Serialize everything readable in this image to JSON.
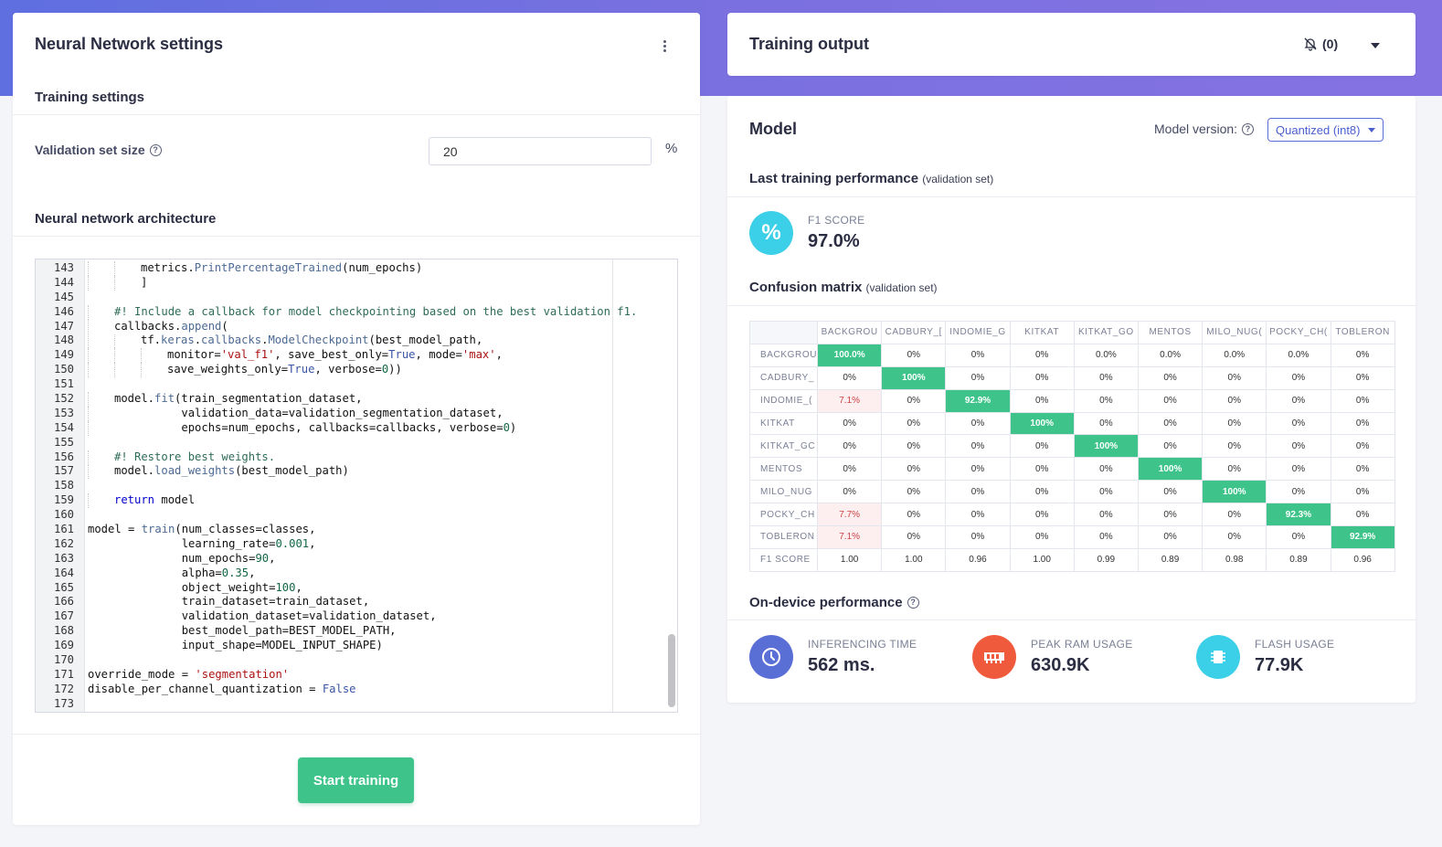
{
  "left": {
    "title": "Neural Network settings",
    "training_settings": "Training settings",
    "validation_label": "Validation set size",
    "validation_value": "20",
    "validation_unit": "%",
    "architecture_title": "Neural network architecture",
    "start_button": "Start training"
  },
  "code": {
    "lines": [
      {
        "n": "143",
        "indent": 2,
        "html": "<span>metrics.</span><span class=\"fn\">PrintPercentageTrained</span><span>(num_epochs)</span>"
      },
      {
        "n": "144",
        "indent": 2,
        "html": "<span>]</span>"
      },
      {
        "n": "145",
        "indent": 0,
        "html": ""
      },
      {
        "n": "146",
        "indent": 1,
        "html": "<span class=\"cmt\">#! Include a callback for model checkpointing based on the best validation f1.</span>"
      },
      {
        "n": "147",
        "indent": 1,
        "html": "<span>callbacks.</span><span class=\"fn\">append</span><span>(</span>"
      },
      {
        "n": "148",
        "indent": 2,
        "html": "<span>tf.</span><span class=\"fn\">keras</span><span>.</span><span class=\"fn\">callbacks</span><span>.</span><span class=\"fn\">ModelCheckpoint</span><span>(best_model_path,</span>"
      },
      {
        "n": "149",
        "indent": 3,
        "html": "<span>monitor=</span><span class=\"str\">'val_f1'</span><span>, save_best_only=</span><span class=\"bool\">True</span><span>, mode=</span><span class=\"str\">'max'</span><span>,</span>"
      },
      {
        "n": "150",
        "indent": 3,
        "html": "<span>save_weights_only=</span><span class=\"bool\">True</span><span>, verbose=</span><span class=\"num\">0</span><span>))</span>"
      },
      {
        "n": "151",
        "indent": 0,
        "html": ""
      },
      {
        "n": "152",
        "indent": 1,
        "html": "<span>model.</span><span class=\"fn\">fit</span><span>(train_segmentation_dataset,</span>"
      },
      {
        "n": "153",
        "indent": 1,
        "html": "<span>          validation_data=validation_segmentation_dataset,</span>"
      },
      {
        "n": "154",
        "indent": 1,
        "html": "<span>          epochs=num_epochs, callbacks=callbacks, verbose=</span><span class=\"num\">0</span><span>)</span>"
      },
      {
        "n": "155",
        "indent": 0,
        "html": ""
      },
      {
        "n": "156",
        "indent": 1,
        "html": "<span class=\"cmt\">#! Restore best weights.</span>"
      },
      {
        "n": "157",
        "indent": 1,
        "html": "<span>model.</span><span class=\"fn\">load_weights</span><span>(best_model_path)</span>"
      },
      {
        "n": "158",
        "indent": 0,
        "html": ""
      },
      {
        "n": "159",
        "indent": 1,
        "html": "<span class=\"kw\">return</span><span> model</span>"
      },
      {
        "n": "160",
        "indent": 0,
        "html": ""
      },
      {
        "n": "161",
        "indent": 0,
        "html": "<span>model = </span><span class=\"fn\">train</span><span>(num_classes=classes,</span>"
      },
      {
        "n": "162",
        "indent": 0,
        "html": "<span>              learning_rate=</span><span class=\"num\">0.001</span><span>,</span>"
      },
      {
        "n": "163",
        "indent": 0,
        "html": "<span>              num_epochs=</span><span class=\"num\">90</span><span>,</span>"
      },
      {
        "n": "164",
        "indent": 0,
        "html": "<span>              alpha=</span><span class=\"num\">0.35</span><span>,</span>"
      },
      {
        "n": "165",
        "indent": 0,
        "html": "<span>              object_weight=</span><span class=\"num\">100</span><span>,</span>"
      },
      {
        "n": "166",
        "indent": 0,
        "html": "<span>              train_dataset=train_dataset,</span>"
      },
      {
        "n": "167",
        "indent": 0,
        "html": "<span>              validation_dataset=validation_dataset,</span>"
      },
      {
        "n": "168",
        "indent": 0,
        "html": "<span>              best_model_path=BEST_MODEL_PATH,</span>"
      },
      {
        "n": "169",
        "indent": 0,
        "html": "<span>              input_shape=MODEL_INPUT_SHAPE)</span>"
      },
      {
        "n": "170",
        "indent": 0,
        "html": ""
      },
      {
        "n": "171",
        "indent": 0,
        "html": "<span>override_mode = </span><span class=\"str\">'segmentation'</span>"
      },
      {
        "n": "172",
        "indent": 0,
        "html": "<span>disable_per_channel_quantization = </span><span class=\"bool\">False</span>"
      },
      {
        "n": "173",
        "indent": 0,
        "html": ""
      }
    ]
  },
  "output": {
    "title": "Training output",
    "notifications": "(0)"
  },
  "model": {
    "title": "Model",
    "version_label": "Model version:",
    "version_value": "Quantized (int8)",
    "last_perf_title": "Last training performance",
    "last_perf_suffix": "(validation set)",
    "f1_label": "F1 SCORE",
    "f1_value": "97.0%",
    "cm_title": "Confusion matrix",
    "cm_suffix": "(validation set)",
    "ondevice_title": "On-device performance",
    "inference_label": "INFERENCING TIME",
    "inference_value": "562 ms.",
    "ram_label": "PEAK RAM USAGE",
    "ram_value": "630.9K",
    "flash_label": "FLASH USAGE",
    "flash_value": "77.9K"
  },
  "confusion_matrix": {
    "columns": [
      "BACKGROUND",
      "CADBURY_DAIRY",
      "INDOMIE_GORENG",
      "KITKAT",
      "KITKAT_GOLD",
      "MENTOS",
      "MILO_NUGGETS",
      "POCKY_CHOCO",
      "TOBLERONE"
    ],
    "column_display": [
      "BACKGROU",
      "CADBURY_[",
      "INDOMIE_G",
      "KITKAT",
      "KITKAT_GO",
      "MENTOS",
      "MILO_NUG(",
      "POCKY_CH(",
      "TOBLERON"
    ],
    "row_display": [
      "BACKGROU",
      "CADBURY_",
      "INDOMIE_(",
      "KITKAT",
      "KITKAT_GC",
      "MENTOS",
      "MILO_NUG",
      "POCKY_CH",
      "TOBLERON"
    ],
    "rows": [
      [
        "100.0%",
        "0%",
        "0%",
        "0%",
        "0.0%",
        "0.0%",
        "0.0%",
        "0.0%",
        "0%"
      ],
      [
        "0%",
        "100%",
        "0%",
        "0%",
        "0%",
        "0%",
        "0%",
        "0%",
        "0%"
      ],
      [
        "7.1%",
        "0%",
        "92.9%",
        "0%",
        "0%",
        "0%",
        "0%",
        "0%",
        "0%"
      ],
      [
        "0%",
        "0%",
        "0%",
        "100%",
        "0%",
        "0%",
        "0%",
        "0%",
        "0%"
      ],
      [
        "0%",
        "0%",
        "0%",
        "0%",
        "100%",
        "0%",
        "0%",
        "0%",
        "0%"
      ],
      [
        "0%",
        "0%",
        "0%",
        "0%",
        "0%",
        "100%",
        "0%",
        "0%",
        "0%"
      ],
      [
        "0%",
        "0%",
        "0%",
        "0%",
        "0%",
        "0%",
        "100%",
        "0%",
        "0%"
      ],
      [
        "7.7%",
        "0%",
        "0%",
        "0%",
        "0%",
        "0%",
        "0%",
        "92.3%",
        "0%"
      ],
      [
        "7.1%",
        "0%",
        "0%",
        "0%",
        "0%",
        "0%",
        "0%",
        "0%",
        "92.9%"
      ]
    ],
    "f1_row_label": "F1 SCORE",
    "f1_scores": [
      "1.00",
      "1.00",
      "0.96",
      "1.00",
      "0.99",
      "0.89",
      "0.98",
      "0.89",
      "0.96"
    ]
  },
  "colors": {
    "accent": "#5f6fe0",
    "success": "#3ec48a",
    "f1_circle": "#3ccfe8",
    "inference_circle": "#5a6fd6",
    "ram_circle": "#f05a3c",
    "flash_circle": "#3ccfe8"
  },
  "icons": {
    "bell": "bell-off-icon",
    "help": "help-circle-icon",
    "kebab": "more-vertical-icon",
    "percent": "percent-icon",
    "clock": "clock-icon",
    "ram": "ram-icon",
    "chip": "chip-icon"
  }
}
